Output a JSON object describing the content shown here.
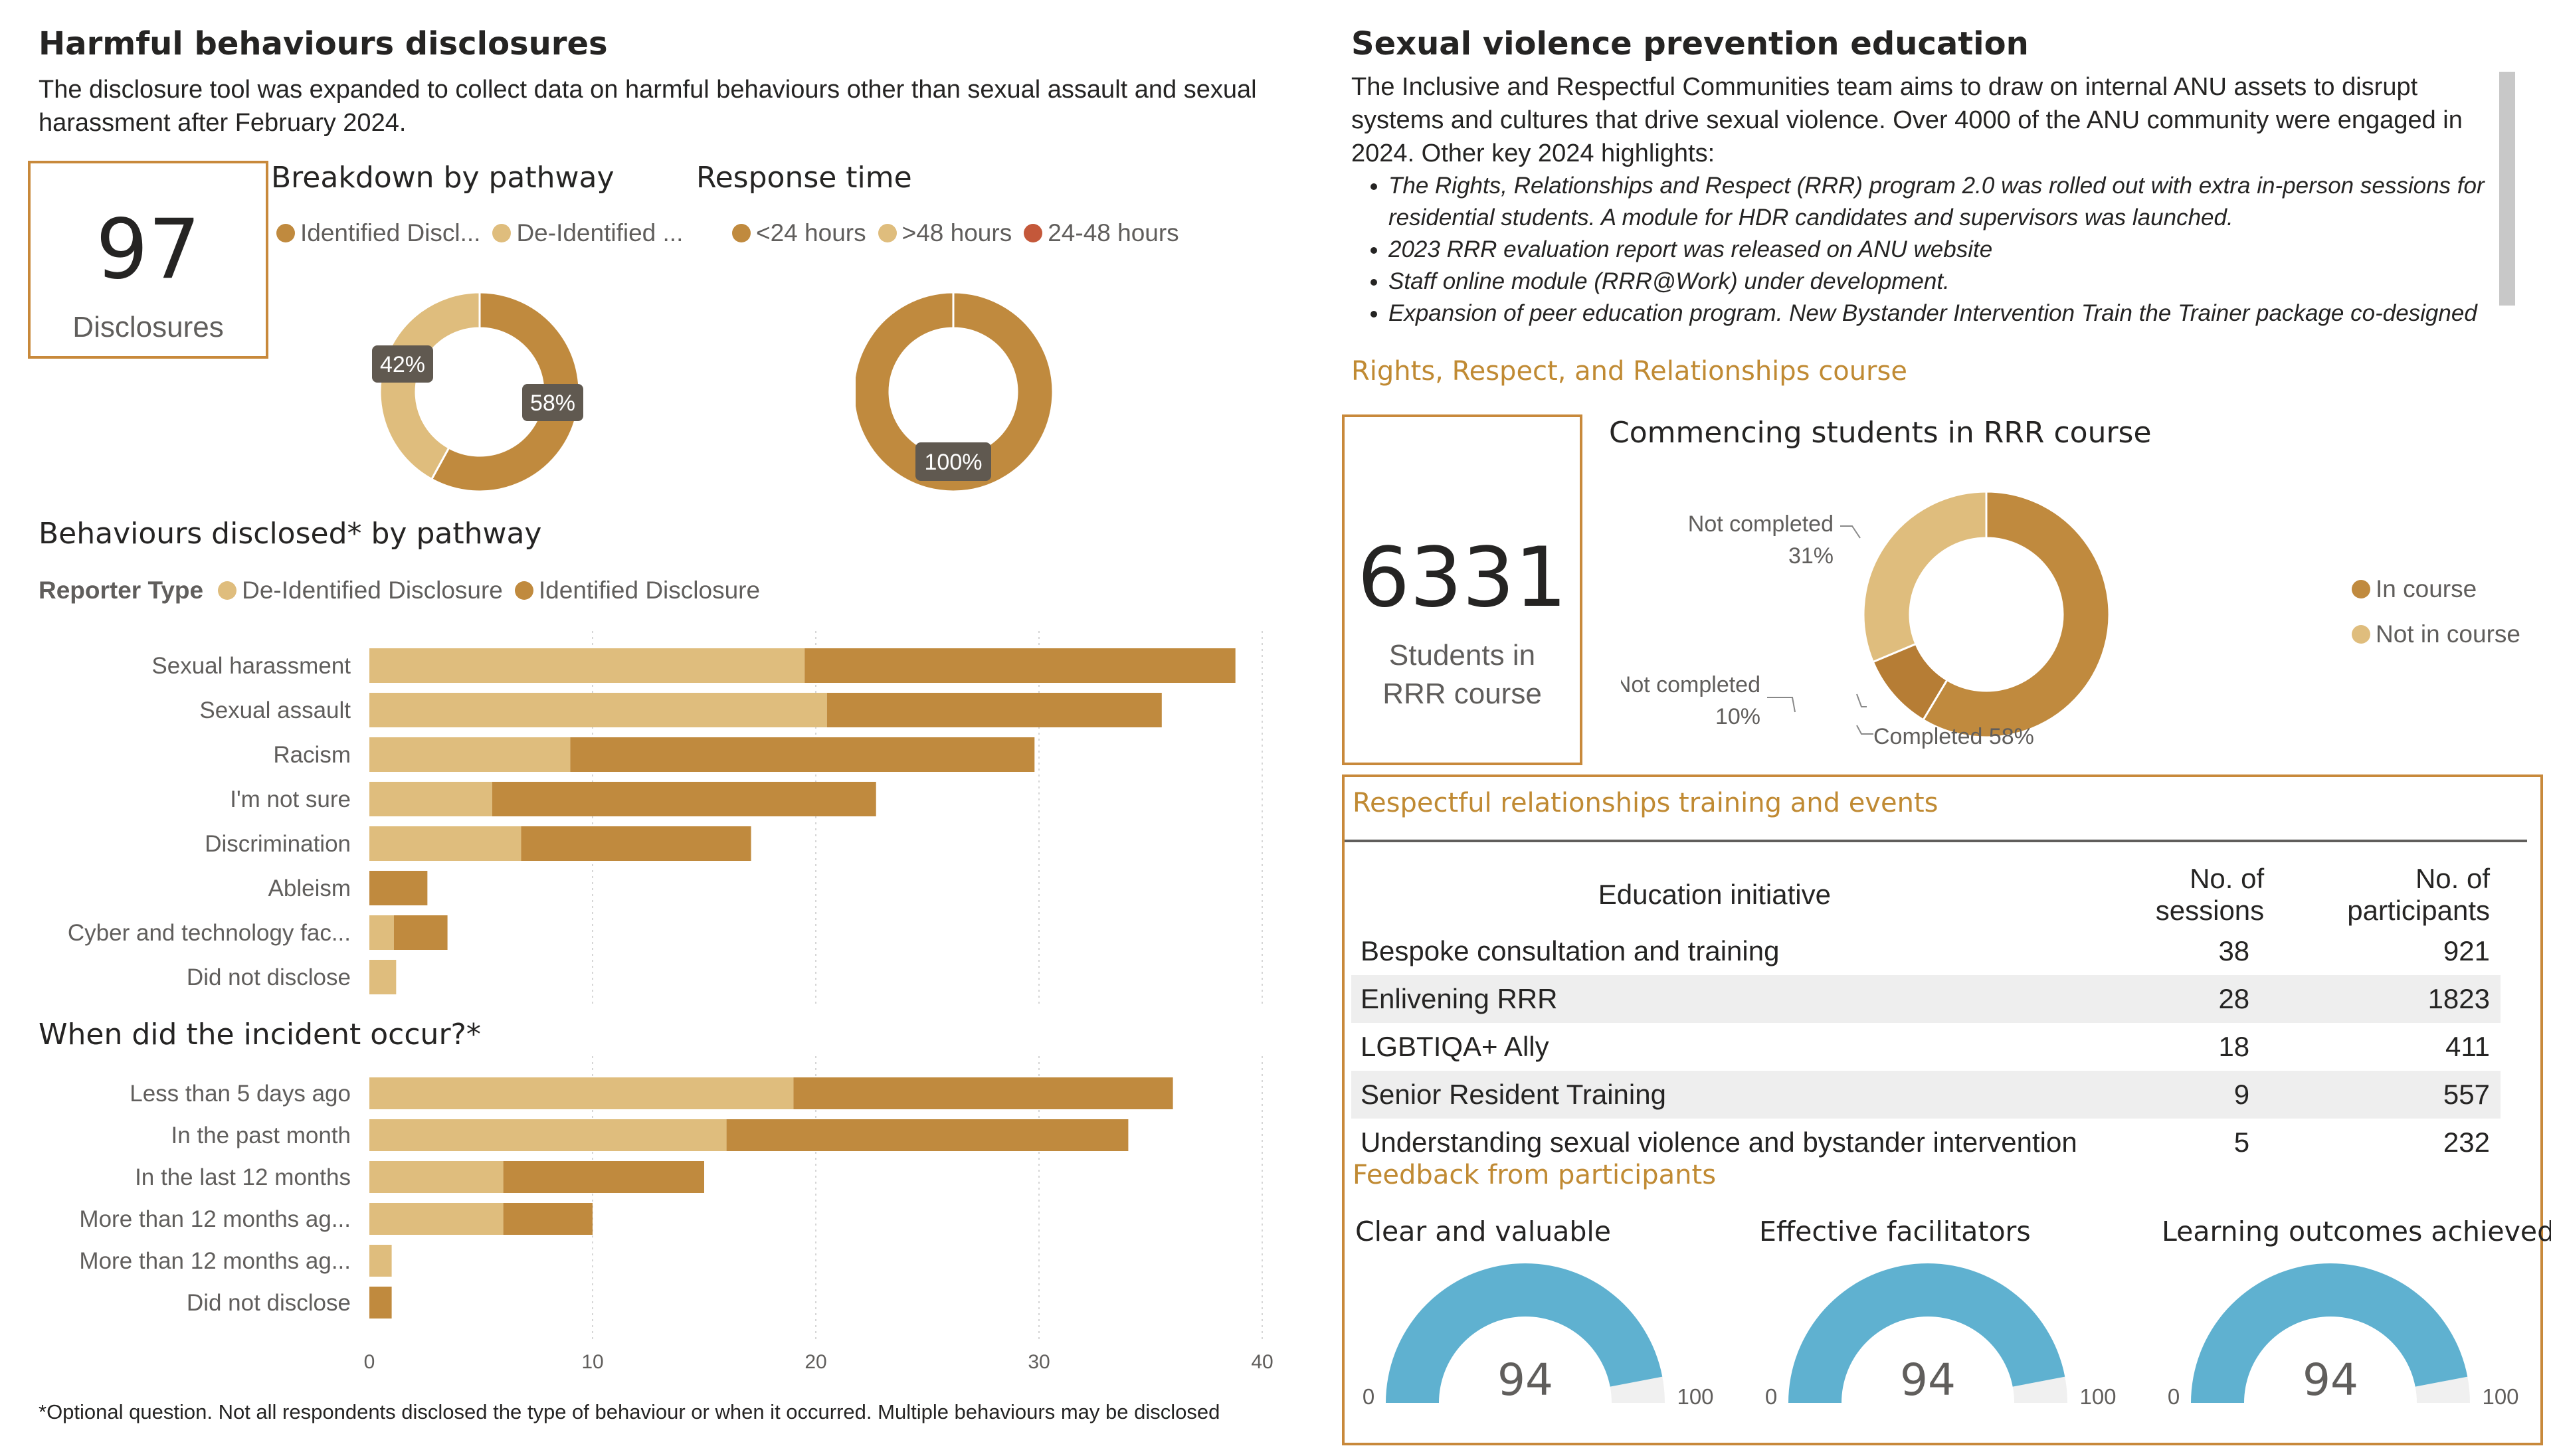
{
  "left": {
    "title": "Harmful behaviours disclosures",
    "intro": "The disclosure tool was expanded to collect data on harmful behaviours other than sexual assault and sexual harassment after February 2024.",
    "kpi": {
      "value": "97",
      "label": "Disclosures"
    },
    "pathway": {
      "title": "Breakdown by pathway",
      "legend": [
        "Identified Discl...",
        "De-Identified ..."
      ],
      "slices": [
        {
          "name": "Identified Disclosure",
          "value": 58,
          "label": "58%",
          "color": "#c08a3e"
        },
        {
          "name": "De-Identified Disclosure",
          "value": 42,
          "label": "42%",
          "color": "#dfbd7d"
        }
      ]
    },
    "response": {
      "title": "Response time",
      "legend": [
        {
          "label": "<24 hours",
          "color": "#c08a3e"
        },
        {
          "label": ">48 hours",
          "color": "#dfbd7d"
        },
        {
          "label": "24-48 hours",
          "color": "#c4583a"
        }
      ],
      "slices": [
        {
          "name": "<24 hours",
          "value": 100,
          "label": "100%",
          "color": "#c08a3e"
        }
      ]
    },
    "behaviours": {
      "title": "Behaviours disclosed* by pathway",
      "legend_title": "Reporter Type",
      "legend": [
        {
          "label": "De-Identified Disclosure",
          "color": "#dfbd7d"
        },
        {
          "label": "Identified Disclosure",
          "color": "#c08a3e"
        }
      ]
    },
    "incident": {
      "title": "When did the incident occur?*"
    },
    "footnote": "*Optional question. Not all respondents disclosed the type of behaviour or when it occurred. Multiple behaviours may be disclosed"
  },
  "right": {
    "title": "Sexual violence prevention education",
    "intro": "The Inclusive and Respectful Communities team aims to draw on internal ANU assets to disrupt systems and cultures that drive sexual violence. Over 4000 of the ANU community were engaged in 2024. Other key 2024 highlights:",
    "bullets": [
      "The Rights, Relationships and Respect (RRR) program 2.0 was rolled out with extra in-person sessions for residential students. A module for HDR  candidates and supervisors was launched.",
      "2023 RRR evaluation report was released on ANU website",
      "Staff online module (RRR@Work) under development.",
      "Expansion of peer education program. New Bystander Intervention Train the Trainer package co-designed"
    ],
    "rrr_title": "Rights, Respect, and Relationships course",
    "kpi": {
      "value": "6331",
      "label1": "Students in",
      "label2": "RRR course"
    },
    "commencing": {
      "title": "Commencing students in RRR course",
      "legend": [
        {
          "label": "In course",
          "color": "#c08a3e"
        },
        {
          "label": "Not in course",
          "color": "#dfbd7d"
        }
      ],
      "slices": [
        {
          "name": "Completed",
          "value": 58,
          "label": "Completed 58%",
          "color": "#c08a3e"
        },
        {
          "name": "Not completed",
          "value": 10,
          "label1": "Not completed",
          "label2": "10%",
          "color": "#b67d35"
        },
        {
          "name": "Not completed",
          "value": 31,
          "label1": "Not completed",
          "label2": "31%",
          "color": "#dfbd7d"
        }
      ]
    },
    "training": {
      "title": "Respectful relationships training and events",
      "headers": [
        "Education initiative",
        "No. of sessions",
        "No. of participants"
      ],
      "rows": [
        [
          "Bespoke consultation and training",
          "38",
          "921"
        ],
        [
          "Enlivening RRR",
          "28",
          "1823"
        ],
        [
          "LGBTIQA+ Ally",
          "18",
          "411"
        ],
        [
          "Senior Resident Training",
          "9",
          "557"
        ],
        [
          "Understanding sexual violence and bystander intervention",
          "5",
          "232"
        ]
      ]
    },
    "feedback": {
      "title": "Feedback from participants",
      "gauges": [
        {
          "title": "Clear and valuable",
          "value": 94,
          "min": "0",
          "max": "100",
          "display": "94"
        },
        {
          "title": "Effective facilitators",
          "value": 94,
          "min": "0",
          "max": "100",
          "display": "94"
        },
        {
          "title": "Learning outcomes achieved",
          "value": 94,
          "min": "0",
          "max": "100",
          "display": "94"
        }
      ],
      "gauge_color": "#5fb1d0"
    }
  },
  "chart_data": [
    {
      "type": "bar",
      "orientation": "horizontal",
      "stacked": true,
      "categories": [
        "Sexual harassment",
        "Sexual assault",
        "Racism",
        "I'm not sure",
        "Discrimination",
        "Ableism",
        "Cyber and technology fac...",
        "Did not disclose"
      ],
      "series": [
        {
          "name": "De-Identified Disclosure",
          "values": [
            19.5,
            20.5,
            9,
            5.5,
            6.8,
            0,
            1.1,
            1.2
          ]
        },
        {
          "name": "Identified Disclosure",
          "values": [
            19.3,
            15,
            20.8,
            17.2,
            10.3,
            2.6,
            2.4,
            0
          ]
        }
      ],
      "xlim": [
        0,
        40
      ]
    },
    {
      "type": "bar",
      "orientation": "horizontal",
      "stacked": true,
      "categories": [
        "Less than 5 days ago",
        "In the past month",
        "In the last 12 months",
        "More than 12 months ag...",
        "More than 12 months ag...",
        "Did not disclose"
      ],
      "series": [
        {
          "name": "De-Identified Disclosure",
          "values": [
            19,
            16,
            6,
            6,
            1,
            0
          ]
        },
        {
          "name": "Identified Disclosure",
          "values": [
            17,
            18,
            9,
            4,
            0,
            1
          ]
        }
      ],
      "xlim": [
        0,
        40
      ],
      "xticks": [
        "0",
        "10",
        "20",
        "30",
        "40"
      ]
    }
  ]
}
